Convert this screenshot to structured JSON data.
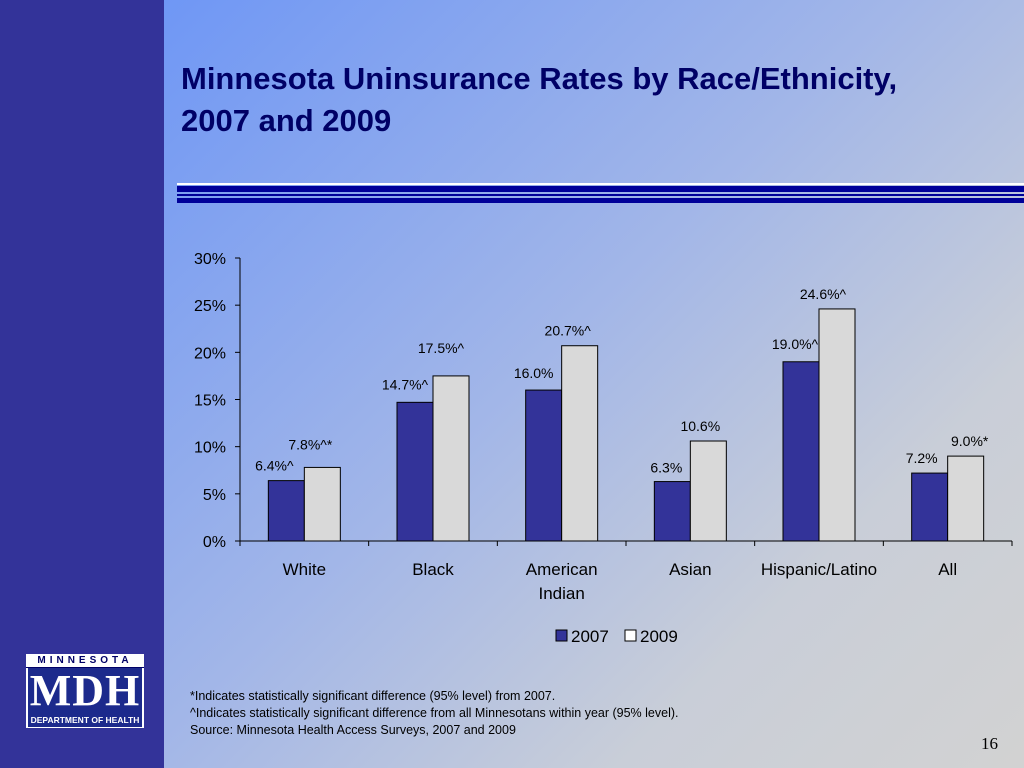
{
  "slide": {
    "title_line1": "Minnesota Uninsurance Rates by Race/Ethnicity,",
    "title_line2": "2007 and 2009",
    "notes": [
      "*Indicates statistically significant difference (95% level) from 2007.",
      "^Indicates statistically significant difference from all Minnesotans within year (95% level).",
      "Source: Minnesota Health Access Surveys, 2007 and 2009"
    ],
    "page_number": "16"
  },
  "logo": {
    "top_text": "MINNESOTA",
    "main_text": "MDH",
    "bottom_text": "DEPARTMENT OF HEALTH"
  },
  "colors": {
    "sidebar": "#333399",
    "series_2007": "#333399",
    "series_2009": "#d9d9d9",
    "title": "#000066"
  },
  "chart_data": {
    "type": "bar",
    "categories": [
      [
        "White"
      ],
      [
        "Black"
      ],
      [
        "American",
        "Indian"
      ],
      [
        "Asian"
      ],
      [
        "Hispanic/Latino"
      ],
      [
        "All"
      ]
    ],
    "series": [
      {
        "name": "2007",
        "values": [
          6.4,
          14.7,
          16.0,
          6.3,
          19.0,
          7.2
        ],
        "labels": [
          "6.4%^",
          "14.7%^",
          "16.0%",
          "6.3%",
          "19.0%^",
          "7.2%"
        ]
      },
      {
        "name": "2009",
        "values": [
          7.8,
          17.5,
          20.7,
          10.6,
          24.6,
          9.0
        ],
        "labels": [
          "7.8%^*",
          "17.5%^",
          "20.7%^",
          "10.6%",
          "24.6%^",
          "9.0%*"
        ]
      }
    ],
    "ylim": [
      0,
      30
    ],
    "yticks": [
      "0%",
      "5%",
      "10%",
      "15%",
      "20%",
      "25%",
      "30%"
    ],
    "legend_position": "bottom",
    "grid": false
  }
}
